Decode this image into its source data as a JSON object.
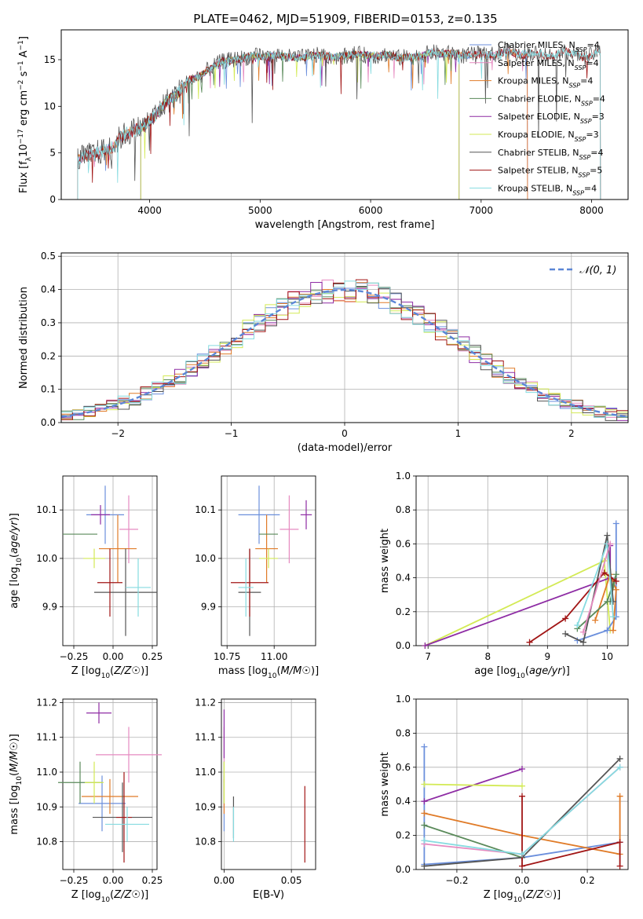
{
  "title": "PLATE=0462, MJD=51909, FIBERID=0153, z=0.135",
  "colors": {
    "Chabrier MILES": "#6b8fdc",
    "Salpeter MILES": "#e68ac0",
    "Kroupa MILES": "#e07b28",
    "Chabrier ELODIE": "#5a8a5a",
    "Salpeter ELODIE": "#8e2ca4",
    "Kroupa ELODIE": "#d3ea55",
    "Chabrier STELIB": "#555555",
    "Salpeter STELIB": "#a11515",
    "Kroupa STELIB": "#86dbe0"
  },
  "models": [
    "Chabrier MILES",
    "Salpeter MILES",
    "Kroupa MILES",
    "Chabrier ELODIE",
    "Salpeter ELODIE",
    "Kroupa ELODIE",
    "Chabrier STELIB",
    "Salpeter STELIB",
    "Kroupa STELIB"
  ],
  "chart_data": [
    {
      "id": "spectrum",
      "type": "line",
      "title": "PLATE=0462, MJD=51909, FIBERID=0153, z=0.135",
      "xlabel": "wavelength [Angstrom, rest frame]",
      "ylabel": "Flux [f_λ 10^-17 erg cm^-2 s^-1 A^-1]",
      "xlim": [
        3200,
        8330
      ],
      "ylim": [
        0,
        18.2
      ],
      "xticks": [
        4000,
        5000,
        6000,
        7000,
        8000
      ],
      "yticks": [
        0,
        5,
        10,
        15
      ],
      "grid": false,
      "legend_position": "upper right",
      "data_x": [
        3350,
        3450,
        3550,
        3650,
        3750,
        3850,
        3950,
        4050,
        4150,
        4250,
        4350,
        4450,
        4550,
        4650,
        4750,
        4850,
        4950,
        5050,
        5150,
        5250,
        5350,
        5450,
        5550,
        5650,
        5750,
        5850,
        5950,
        6050,
        6150,
        6250,
        6350,
        6450,
        6550,
        6650,
        6750,
        6850,
        6950,
        7050,
        7150,
        7250,
        7350,
        7450,
        7550,
        7650,
        7750,
        7850,
        7950,
        8050
      ],
      "data_y": [
        4.3,
        4.7,
        5.1,
        5.5,
        6.8,
        7.4,
        7.9,
        9.0,
        10.5,
        11.3,
        12.8,
        13.2,
        14.1,
        14.8,
        15.0,
        15.2,
        15.4,
        15.3,
        15.5,
        15.3,
        15.2,
        15.4,
        15.5,
        15.3,
        15.4,
        15.6,
        15.5,
        15.4,
        15.6,
        15.2,
        15.3,
        15.4,
        15.8,
        15.6,
        15.7,
        15.4,
        15.6,
        15.5,
        15.6,
        15.9,
        15.5,
        15.7,
        15.6,
        15.4,
        15.9,
        15.6,
        15.2,
        15.8
      ],
      "series": [
        {
          "name": "Chabrier MILES, N_SSP=4",
          "label_main": "Chabrier MILES, N",
          "label_sub": "SSP",
          "label_tail": "=4",
          "range": [
            3350,
            7420
          ],
          "noise": 0.35
        },
        {
          "name": "Salpeter MILES, N_SSP=4",
          "label_main": "Salpeter MILES, N",
          "label_sub": "SSP",
          "label_tail": "=4",
          "range": [
            3350,
            7420
          ],
          "noise": 0.35
        },
        {
          "name": "Kroupa MILES, N_SSP=4",
          "label_main": "Kroupa MILES, N",
          "label_sub": "SSP",
          "label_tail": "=4",
          "range": [
            3350,
            7420
          ],
          "noise": 0.35
        },
        {
          "name": "Chabrier ELODIE, N_SSP=4",
          "label_main": "Chabrier ELODIE, N",
          "label_sub": "SSP",
          "label_tail": "=4",
          "range": [
            3920,
            6800
          ],
          "noise": 0.35
        },
        {
          "name": "Salpeter ELODIE, N_SSP=3",
          "label_main": "Salpeter ELODIE, N",
          "label_sub": "SSP",
          "label_tail": "=3",
          "range": [
            3920,
            6800
          ],
          "noise": 0.35
        },
        {
          "name": "Kroupa ELODIE, N_SSP=3",
          "label_main": "Kroupa ELODIE, N",
          "label_sub": "SSP",
          "label_tail": "=3",
          "range": [
            3920,
            6800
          ],
          "noise": 0.35
        },
        {
          "name": "Chabrier STELIB, N_SSP=4",
          "label_main": "Chabrier STELIB, N",
          "label_sub": "SSP",
          "label_tail": "=4",
          "range": [
            3350,
            8080
          ],
          "noise": 0.9
        },
        {
          "name": "Salpeter STELIB, N_SSP=5",
          "label_main": "Salpeter STELIB, N",
          "label_sub": "SSP",
          "label_tail": "=5",
          "range": [
            3350,
            8080
          ],
          "noise": 0.45
        },
        {
          "name": "Kroupa STELIB, N_SSP=4",
          "label_main": "Kroupa STELIB, N",
          "label_sub": "SSP",
          "label_tail": "=4",
          "range": [
            3350,
            8080
          ],
          "noise": 0.45
        }
      ]
    },
    {
      "id": "residuals",
      "type": "histogram",
      "xlabel": "(data-model)/error",
      "ylabel": "Normed distribution",
      "xlim": [
        -2.5,
        2.5
      ],
      "ylim": [
        0,
        0.51
      ],
      "xticks": [
        -2,
        -1,
        0,
        1,
        2
      ],
      "yticks": [
        0.0,
        0.1,
        0.2,
        0.3,
        0.4,
        0.5
      ],
      "grid": true,
      "bins": {
        "start": -2.5,
        "width": 0.1,
        "count": 50
      },
      "reference": {
        "name": "N(0,1)",
        "label": "𝒩(0, 1)",
        "mu": 0,
        "sigma": 1
      },
      "legend_position": "upper right"
    },
    {
      "id": "z-age",
      "type": "errorbar",
      "xlabel": "Z [log10(Z/Z☉)]",
      "ylabel": "age [log10(age/yr)]",
      "xlim": [
        -0.32,
        0.28
      ],
      "ylim": [
        9.82,
        10.17
      ],
      "xticks": [
        -0.25,
        0.0,
        0.25
      ],
      "yticks": [
        9.9,
        10.0,
        10.1
      ],
      "grid": true,
      "points": [
        {
          "model": "Chabrier MILES",
          "x": -0.05,
          "y": 10.09,
          "xerr": 0.12,
          "yerr": 0.06
        },
        {
          "model": "Salpeter MILES",
          "x": 0.1,
          "y": 10.06,
          "xerr": 0.06,
          "yerr": 0.07
        },
        {
          "model": "Kroupa MILES",
          "x": 0.03,
          "y": 10.02,
          "xerr": 0.12,
          "yerr": 0.07
        },
        {
          "model": "Chabrier ELODIE",
          "x": -0.21,
          "y": 10.05,
          "xerr": 0.11,
          "yerr": 0.0
        },
        {
          "model": "Salpeter ELODIE",
          "x": -0.08,
          "y": 10.09,
          "xerr": 0.06,
          "yerr": 0.02
        },
        {
          "model": "Kroupa ELODIE",
          "x": -0.12,
          "y": 10.0,
          "xerr": 0.07,
          "yerr": 0.02
        },
        {
          "model": "Chabrier STELIB",
          "x": 0.08,
          "y": 9.93,
          "xerr": 0.2,
          "yerr": 0.09
        },
        {
          "model": "Salpeter STELIB",
          "x": -0.02,
          "y": 9.95,
          "xerr": 0.08,
          "yerr": 0.07
        },
        {
          "model": "Kroupa STELIB",
          "x": 0.16,
          "y": 9.94,
          "xerr": 0.08,
          "yerr": 0.06
        }
      ]
    },
    {
      "id": "mass-age",
      "type": "errorbar",
      "xlabel": "mass [log10(M/M☉)]",
      "ylabel": "",
      "xlim": [
        10.72,
        11.22
      ],
      "ylim": [
        9.82,
        10.17
      ],
      "xticks": [
        10.75,
        11.0
      ],
      "yticks": [
        9.9,
        10.0,
        10.1
      ],
      "grid": true,
      "points": [
        {
          "model": "Chabrier MILES",
          "x": 10.92,
          "y": 10.09,
          "xerr": 0.11,
          "yerr": 0.06
        },
        {
          "model": "Salpeter MILES",
          "x": 11.08,
          "y": 10.06,
          "xerr": 0.05,
          "yerr": 0.07
        },
        {
          "model": "Kroupa MILES",
          "x": 10.96,
          "y": 10.02,
          "xerr": 0.06,
          "yerr": 0.07
        },
        {
          "model": "Chabrier ELODIE",
          "x": 10.97,
          "y": 10.05,
          "xerr": 0.05,
          "yerr": 0.0
        },
        {
          "model": "Salpeter ELODIE",
          "x": 11.17,
          "y": 10.09,
          "xerr": 0.03,
          "yerr": 0.03
        },
        {
          "model": "Kroupa ELODIE",
          "x": 10.97,
          "y": 10.0,
          "xerr": 0.05,
          "yerr": 0.02
        },
        {
          "model": "Chabrier STELIB",
          "x": 10.87,
          "y": 9.93,
          "xerr": 0.06,
          "yerr": 0.09
        },
        {
          "model": "Salpeter STELIB",
          "x": 10.87,
          "y": 9.95,
          "xerr": 0.1,
          "yerr": 0.07
        },
        {
          "model": "Kroupa STELIB",
          "x": 10.85,
          "y": 9.94,
          "xerr": 0.04,
          "yerr": 0.06
        }
      ]
    },
    {
      "id": "age-weight",
      "type": "line",
      "xlabel": "age [log10(age/yr)]",
      "ylabel": "mass weight",
      "xlim": [
        6.8,
        10.35
      ],
      "ylim": [
        0,
        1.0
      ],
      "xticks": [
        7,
        8,
        9,
        10
      ],
      "yticks": [
        0.0,
        0.2,
        0.4,
        0.6,
        0.8,
        1.0
      ],
      "grid": true,
      "series": [
        {
          "model": "Kroupa ELODIE",
          "x": [
            6.95,
            9.95,
            10.05
          ],
          "y": [
            0.0,
            0.5,
            0.09
          ]
        },
        {
          "model": "Salpeter ELODIE",
          "x": [
            6.95,
            10.05,
            10.05
          ],
          "y": [
            0.0,
            0.4,
            0.59
          ]
        },
        {
          "model": "Chabrier MILES",
          "x": [
            9.5,
            10.0,
            10.15,
            10.15
          ],
          "y": [
            0.03,
            0.09,
            0.17,
            0.72
          ]
        },
        {
          "model": "Kroupa MILES",
          "x": [
            9.8,
            10.05,
            10.15,
            10.1
          ],
          "y": [
            0.15,
            0.42,
            0.33,
            0.09
          ]
        },
        {
          "model": "Chabrier ELODIE",
          "x": [
            9.5,
            10.0,
            10.15,
            10.05
          ],
          "y": [
            0.1,
            0.26,
            0.42,
            0.26
          ]
        },
        {
          "model": "Chabrier STELIB",
          "x": [
            9.3,
            9.6,
            10.0,
            10.1
          ],
          "y": [
            0.07,
            0.02,
            0.65,
            0.26
          ]
        },
        {
          "model": "Salpeter STELIB",
          "x": [
            8.7,
            9.3,
            9.95,
            10.15
          ],
          "y": [
            0.02,
            0.16,
            0.43,
            0.38
          ]
        },
        {
          "model": "Kroupa STELIB",
          "x": [
            9.5,
            10.0,
            10.1
          ],
          "y": [
            0.12,
            0.6,
            0.17
          ]
        },
        {
          "model": "Salpeter MILES",
          "x": [
            9.6,
            10.05
          ],
          "y": [
            0.08,
            0.6
          ]
        }
      ]
    },
    {
      "id": "z-mass",
      "type": "errorbar",
      "xlabel": "Z [log10(Z/Z☉)]",
      "ylabel": "mass [log10(M/M☉)]",
      "xlim": [
        -0.32,
        0.28
      ],
      "ylim": [
        10.72,
        11.21
      ],
      "xticks": [
        -0.25,
        0.0,
        0.25
      ],
      "yticks": [
        10.8,
        10.9,
        11.0,
        11.1,
        11.2
      ],
      "grid": true,
      "points": [
        {
          "model": "Chabrier MILES",
          "x": -0.07,
          "y": 10.91,
          "xerr": 0.15,
          "yerr": 0.08
        },
        {
          "model": "Salpeter MILES",
          "x": 0.1,
          "y": 11.05,
          "xerr": 0.21,
          "yerr": 0.08
        },
        {
          "model": "Kroupa MILES",
          "x": -0.02,
          "y": 10.93,
          "xerr": 0.18,
          "yerr": 0.05
        },
        {
          "model": "Chabrier ELODIE",
          "x": -0.21,
          "y": 10.97,
          "xerr": 0.14,
          "yerr": 0.06
        },
        {
          "model": "Salpeter ELODIE",
          "x": -0.09,
          "y": 11.17,
          "xerr": 0.08,
          "yerr": 0.03
        },
        {
          "model": "Kroupa ELODIE",
          "x": -0.12,
          "y": 10.97,
          "xerr": 0.06,
          "yerr": 0.06
        },
        {
          "model": "Chabrier STELIB",
          "x": 0.06,
          "y": 10.87,
          "xerr": 0.19,
          "yerr": 0.1
        },
        {
          "model": "Salpeter STELIB",
          "x": 0.07,
          "y": 10.87,
          "xerr": 0.05,
          "yerr": 0.13
        },
        {
          "model": "Kroupa STELIB",
          "x": 0.09,
          "y": 10.85,
          "xerr": 0.14,
          "yerr": 0.05
        }
      ]
    },
    {
      "id": "ebv-mass",
      "type": "errorbar",
      "xlabel": "E(B-V)",
      "ylabel": "",
      "xlim": [
        -0.002,
        0.068
      ],
      "ylim": [
        10.72,
        11.21
      ],
      "xticks": [
        0.0,
        0.05
      ],
      "yticks": [
        10.8,
        10.9,
        11.0,
        11.1,
        11.2
      ],
      "grid": true,
      "points": [
        {
          "model": "Chabrier MILES",
          "x": 0.0,
          "y": 10.91,
          "xerr": 0.0,
          "yerr": 0.08
        },
        {
          "model": "Salpeter MILES",
          "x": 0.0,
          "y": 11.05,
          "xerr": 0.0,
          "yerr": 0.08
        },
        {
          "model": "Kroupa MILES",
          "x": 0.0,
          "y": 10.93,
          "xerr": 0.0,
          "yerr": 0.05
        },
        {
          "model": "Chabrier ELODIE",
          "x": 0.0,
          "y": 10.97,
          "xerr": 0.0,
          "yerr": 0.06
        },
        {
          "model": "Salpeter ELODIE",
          "x": 0.0,
          "y": 11.11,
          "xerr": 0.0,
          "yerr": 0.07
        },
        {
          "model": "Kroupa ELODIE",
          "x": 0.0,
          "y": 10.97,
          "xerr": 0.0,
          "yerr": 0.06
        },
        {
          "model": "Chabrier STELIB",
          "x": 0.007,
          "y": 10.87,
          "xerr": 0.0,
          "yerr": 0.06
        },
        {
          "model": "Salpeter STELIB",
          "x": 0.06,
          "y": 10.85,
          "xerr": 0.0,
          "yerr": 0.11
        },
        {
          "model": "Kroupa STELIB",
          "x": 0.007,
          "y": 10.85,
          "xerr": 0.0,
          "yerr": 0.05
        }
      ]
    },
    {
      "id": "z-weight",
      "type": "line",
      "xlabel": "Z [log10(Z/Z☉)]",
      "ylabel": "mass weight",
      "xlim": [
        -0.325,
        0.325
      ],
      "ylim": [
        0,
        1.0
      ],
      "xticks": [
        -0.2,
        0.0,
        0.2
      ],
      "yticks": [
        0.0,
        0.2,
        0.4,
        0.6,
        0.8,
        1.0
      ],
      "grid": true,
      "series": [
        {
          "model": "Chabrier MILES",
          "x": [
            -0.3,
            -0.3,
            0.0,
            0.3
          ],
          "y": [
            0.72,
            0.03,
            0.07,
            0.16
          ]
        },
        {
          "model": "Salpeter MILES",
          "x": [
            -0.3,
            0.0,
            0.3
          ],
          "y": [
            0.15,
            0.09,
            0.6
          ]
        },
        {
          "model": "Kroupa MILES",
          "x": [
            -0.3,
            0.0,
            0.3,
            0.3
          ],
          "y": [
            0.33,
            0.2,
            0.09,
            0.43
          ]
        },
        {
          "model": "Chabrier ELODIE",
          "x": [
            -0.3,
            0.0
          ],
          "y": [
            0.26,
            0.07
          ]
        },
        {
          "model": "Salpeter ELODIE",
          "x": [
            -0.3,
            0.0
          ],
          "y": [
            0.4,
            0.59
          ]
        },
        {
          "model": "Kroupa ELODIE",
          "x": [
            -0.3,
            0.0
          ],
          "y": [
            0.5,
            0.49
          ]
        },
        {
          "model": "Chabrier STELIB",
          "x": [
            -0.3,
            0.0,
            0.3
          ],
          "y": [
            0.02,
            0.07,
            0.65
          ]
        },
        {
          "model": "Salpeter STELIB",
          "x": [
            0.0,
            0.0,
            0.3,
            0.3
          ],
          "y": [
            0.43,
            0.02,
            0.16,
            0.02
          ]
        },
        {
          "model": "Kroupa STELIB",
          "x": [
            -0.3,
            0.0,
            0.3
          ],
          "y": [
            0.17,
            0.09,
            0.6
          ]
        }
      ]
    }
  ]
}
